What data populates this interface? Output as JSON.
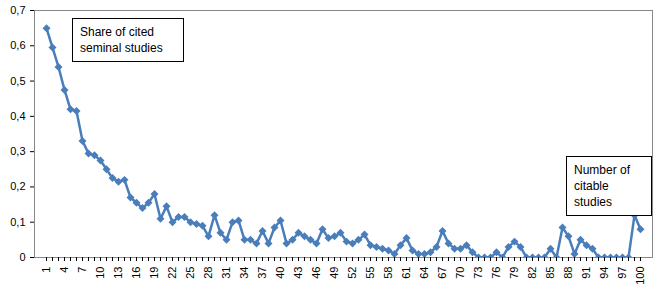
{
  "chart_data": {
    "type": "line",
    "categories": [
      "1",
      null,
      null,
      "4",
      null,
      null,
      "7",
      null,
      null,
      "10",
      null,
      null,
      "13",
      null,
      null,
      "16",
      null,
      null,
      "19",
      null,
      null,
      "22",
      null,
      null,
      "25",
      null,
      null,
      "28",
      null,
      null,
      "31",
      null,
      null,
      "34",
      null,
      null,
      "37",
      null,
      null,
      "40",
      null,
      null,
      "43",
      null,
      null,
      "46",
      null,
      null,
      "49",
      null,
      null,
      "52",
      null,
      null,
      "55",
      null,
      null,
      "58",
      null,
      null,
      "61",
      null,
      null,
      "64",
      null,
      null,
      "67",
      null,
      null,
      "70",
      null,
      null,
      "73",
      null,
      null,
      "76",
      null,
      null,
      "79",
      null,
      null,
      "82",
      null,
      null,
      "85",
      null,
      null,
      "88",
      null,
      null,
      "91",
      null,
      null,
      "94",
      null,
      null,
      "97",
      null,
      null,
      "100"
    ],
    "values": [
      0.65,
      0.595,
      0.54,
      0.475,
      0.42,
      0.415,
      0.33,
      0.295,
      0.29,
      0.275,
      0.25,
      0.225,
      0.215,
      0.22,
      0.17,
      0.155,
      0.14,
      0.155,
      0.18,
      0.11,
      0.145,
      0.1,
      0.115,
      0.115,
      0.1,
      0.095,
      0.09,
      0.06,
      0.12,
      0.07,
      0.05,
      0.1,
      0.105,
      0.05,
      0.05,
      0.04,
      0.075,
      0.04,
      0.085,
      0.105,
      0.04,
      0.05,
      0.07,
      0.06,
      0.05,
      0.04,
      0.08,
      0.055,
      0.06,
      0.07,
      0.045,
      0.04,
      0.05,
      0.065,
      0.035,
      0.03,
      0.025,
      0.02,
      0.01,
      0.035,
      0.055,
      0.02,
      0.01,
      0.01,
      0.015,
      0.03,
      0.075,
      0.04,
      0.025,
      0.025,
      0.035,
      0.015,
      0,
      0,
      0,
      0.015,
      0,
      0.03,
      0.045,
      0.03,
      0,
      0,
      0,
      0,
      0.025,
      0,
      0.085,
      0.06,
      0.01,
      0.05,
      0.035,
      0.025,
      0,
      0,
      0,
      0,
      0,
      0,
      0.12,
      0.08
    ],
    "color": "#4a7ebb",
    "marker": "diamond",
    "line_style": "solid",
    "ylim": [
      0,
      0.7
    ],
    "yticks": [
      0,
      {
        "value": 0.1,
        "label": "0,1"
      },
      {
        "value": 0.2,
        "label": "0,2"
      },
      {
        "value": 0.3,
        "label": "0,3"
      },
      {
        "value": 0.4,
        "label": "0,4"
      },
      {
        "value": 0.5,
        "label": "0,5"
      },
      {
        "value": 0.6,
        "label": "0,6"
      },
      {
        "value": 0.7,
        "label": "0,7"
      }
    ],
    "grid": false,
    "annotations": [
      "Share of cited seminal studies",
      "Number of citable studies"
    ]
  }
}
